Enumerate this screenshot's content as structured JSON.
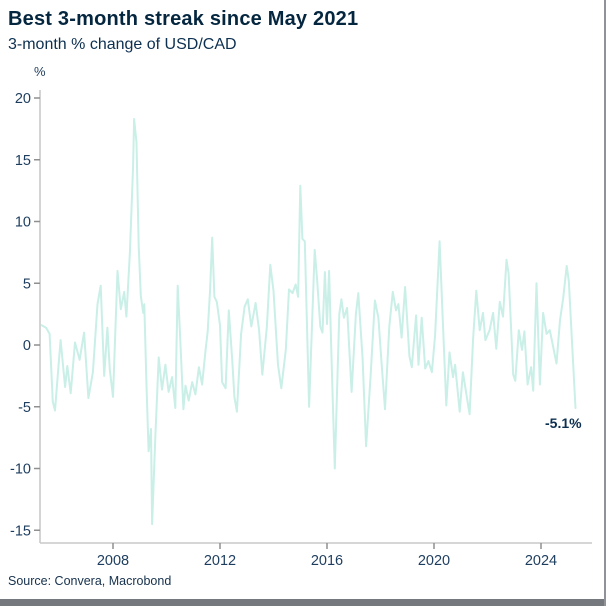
{
  "header": {
    "title": "Best 3-month streak since May 2021",
    "subtitle": "3-month % change of USD/CAD"
  },
  "footer": {
    "source": "Source: Convera, Macrobond"
  },
  "colors": {
    "line": "#c9efe7",
    "axis": "#c9c9c9",
    "tick": "#8f8f8f",
    "tick_label": "#1d3d5e",
    "title_text": "#04263f",
    "annotation": "#0d3050",
    "bottom_bar": "#75797d",
    "border": "#8f9296"
  },
  "chart_data": {
    "type": "line",
    "title": "Best 3-month streak since May 2021",
    "subtitle": "3-month % change of USD/CAD",
    "ylabel": "%",
    "xlabel": "",
    "ylim": [
      -15,
      20
    ],
    "xlim": [
      2005.3,
      2025.4
    ],
    "y_ticks": [
      20,
      15,
      10,
      5,
      0,
      -5,
      -10,
      -15
    ],
    "x_ticks": [
      2008,
      2012,
      2016,
      2020,
      2024
    ],
    "grid": false,
    "legend": false,
    "annotation": {
      "label": "-5.1%",
      "x": 2025.29,
      "y": -5.1
    },
    "series": [
      {
        "name": "3-month % change of USD/CAD",
        "points": [
          [
            2005.33,
            1.6
          ],
          [
            2005.5,
            1.4
          ],
          [
            2005.63,
            0.9
          ],
          [
            2005.75,
            -4.6
          ],
          [
            2005.83,
            -5.3
          ],
          [
            2005.96,
            -1.8
          ],
          [
            2006.04,
            0.4
          ],
          [
            2006.21,
            -3.4
          ],
          [
            2006.29,
            -1.7
          ],
          [
            2006.42,
            -3.9
          ],
          [
            2006.58,
            0.2
          ],
          [
            2006.75,
            -1.2
          ],
          [
            2006.92,
            1.0
          ],
          [
            2007.08,
            -4.3
          ],
          [
            2007.25,
            -2.2
          ],
          [
            2007.42,
            3.3
          ],
          [
            2007.54,
            4.8
          ],
          [
            2007.67,
            -2.5
          ],
          [
            2007.79,
            1.4
          ],
          [
            2007.88,
            -2.0
          ],
          [
            2008.0,
            -4.2
          ],
          [
            2008.17,
            6.0
          ],
          [
            2008.29,
            2.9
          ],
          [
            2008.42,
            4.3
          ],
          [
            2008.5,
            2.3
          ],
          [
            2008.63,
            7.5
          ],
          [
            2008.75,
            14.5
          ],
          [
            2008.79,
            18.3
          ],
          [
            2008.88,
            16.4
          ],
          [
            2008.96,
            8.0
          ],
          [
            2009.04,
            4.0
          ],
          [
            2009.13,
            2.6
          ],
          [
            2009.17,
            3.3
          ],
          [
            2009.25,
            -3.0
          ],
          [
            2009.33,
            -8.6
          ],
          [
            2009.42,
            -6.8
          ],
          [
            2009.46,
            -14.5
          ],
          [
            2009.58,
            -7.5
          ],
          [
            2009.71,
            -1.0
          ],
          [
            2009.83,
            -3.6
          ],
          [
            2009.96,
            -1.6
          ],
          [
            2010.08,
            -3.8
          ],
          [
            2010.21,
            -2.6
          ],
          [
            2010.33,
            -5.1
          ],
          [
            2010.42,
            4.8
          ],
          [
            2010.5,
            1.1
          ],
          [
            2010.63,
            -5.2
          ],
          [
            2010.71,
            -3.3
          ],
          [
            2010.83,
            -4.5
          ],
          [
            2010.96,
            -3.0
          ],
          [
            2011.08,
            -4.0
          ],
          [
            2011.21,
            -1.8
          ],
          [
            2011.33,
            -3.2
          ],
          [
            2011.46,
            -0.4
          ],
          [
            2011.54,
            1.1
          ],
          [
            2011.63,
            4.5
          ],
          [
            2011.71,
            8.7
          ],
          [
            2011.79,
            3.9
          ],
          [
            2011.88,
            3.5
          ],
          [
            2012.0,
            1.6
          ],
          [
            2012.08,
            -3.0
          ],
          [
            2012.21,
            -3.5
          ],
          [
            2012.33,
            2.8
          ],
          [
            2012.46,
            -1.3
          ],
          [
            2012.54,
            -4.2
          ],
          [
            2012.63,
            -5.4
          ],
          [
            2012.79,
            0.9
          ],
          [
            2012.92,
            3.1
          ],
          [
            2013.04,
            3.7
          ],
          [
            2013.17,
            1.5
          ],
          [
            2013.33,
            3.4
          ],
          [
            2013.46,
            1.2
          ],
          [
            2013.58,
            -2.4
          ],
          [
            2013.75,
            1.4
          ],
          [
            2013.88,
            6.5
          ],
          [
            2014.0,
            4.4
          ],
          [
            2014.17,
            -1.6
          ],
          [
            2014.29,
            -3.5
          ],
          [
            2014.46,
            -0.4
          ],
          [
            2014.58,
            4.5
          ],
          [
            2014.71,
            4.2
          ],
          [
            2014.83,
            4.9
          ],
          [
            2014.92,
            3.9
          ],
          [
            2015.0,
            12.9
          ],
          [
            2015.08,
            8.6
          ],
          [
            2015.17,
            8.4
          ],
          [
            2015.33,
            -5.0
          ],
          [
            2015.54,
            7.7
          ],
          [
            2015.63,
            5.3
          ],
          [
            2015.75,
            1.5
          ],
          [
            2015.83,
            1.0
          ],
          [
            2015.92,
            5.9
          ],
          [
            2016.0,
            1.7
          ],
          [
            2016.08,
            6.0
          ],
          [
            2016.17,
            -1.0
          ],
          [
            2016.29,
            -10.0
          ],
          [
            2016.46,
            2.5
          ],
          [
            2016.54,
            3.7
          ],
          [
            2016.63,
            2.2
          ],
          [
            2016.75,
            3.0
          ],
          [
            2016.92,
            -3.8
          ],
          [
            2017.08,
            2.5
          ],
          [
            2017.17,
            4.2
          ],
          [
            2017.33,
            -1.1
          ],
          [
            2017.46,
            -8.2
          ],
          [
            2017.63,
            -2.5
          ],
          [
            2017.79,
            3.6
          ],
          [
            2017.92,
            2.2
          ],
          [
            2018.04,
            -1.5
          ],
          [
            2018.17,
            -5.2
          ],
          [
            2018.33,
            1.5
          ],
          [
            2018.46,
            4.3
          ],
          [
            2018.58,
            2.8
          ],
          [
            2018.67,
            3.3
          ],
          [
            2018.79,
            0.6
          ],
          [
            2018.92,
            4.7
          ],
          [
            2019.08,
            -0.9
          ],
          [
            2019.17,
            -1.8
          ],
          [
            2019.33,
            2.4
          ],
          [
            2019.42,
            -1.6
          ],
          [
            2019.54,
            2.2
          ],
          [
            2019.67,
            -1.9
          ],
          [
            2019.79,
            -1.3
          ],
          [
            2019.92,
            -2.2
          ],
          [
            2020.04,
            0.8
          ],
          [
            2020.21,
            8.4
          ],
          [
            2020.33,
            2.0
          ],
          [
            2020.46,
            -4.9
          ],
          [
            2020.58,
            -0.6
          ],
          [
            2020.71,
            -2.6
          ],
          [
            2020.79,
            -1.6
          ],
          [
            2020.96,
            -5.4
          ],
          [
            2021.08,
            -2.2
          ],
          [
            2021.21,
            -4.0
          ],
          [
            2021.33,
            -5.6
          ],
          [
            2021.46,
            0.5
          ],
          [
            2021.58,
            4.4
          ],
          [
            2021.71,
            1.2
          ],
          [
            2021.83,
            2.6
          ],
          [
            2021.92,
            0.4
          ],
          [
            2022.08,
            1.2
          ],
          [
            2022.21,
            2.6
          ],
          [
            2022.33,
            -0.3
          ],
          [
            2022.46,
            3.5
          ],
          [
            2022.58,
            2.3
          ],
          [
            2022.71,
            6.9
          ],
          [
            2022.79,
            5.8
          ],
          [
            2022.96,
            -2.4
          ],
          [
            2023.04,
            -2.9
          ],
          [
            2023.17,
            1.2
          ],
          [
            2023.29,
            -0.4
          ],
          [
            2023.38,
            1.1
          ],
          [
            2023.5,
            -3.2
          ],
          [
            2023.63,
            -1.8
          ],
          [
            2023.71,
            -3.7
          ],
          [
            2023.83,
            5.0
          ],
          [
            2023.96,
            -3.2
          ],
          [
            2024.08,
            2.6
          ],
          [
            2024.21,
            0.9
          ],
          [
            2024.33,
            1.2
          ],
          [
            2024.46,
            -0.2
          ],
          [
            2024.58,
            -1.5
          ],
          [
            2024.71,
            2.0
          ],
          [
            2024.83,
            3.8
          ],
          [
            2024.96,
            6.4
          ],
          [
            2025.04,
            5.2
          ],
          [
            2025.29,
            -5.1
          ]
        ]
      }
    ]
  }
}
